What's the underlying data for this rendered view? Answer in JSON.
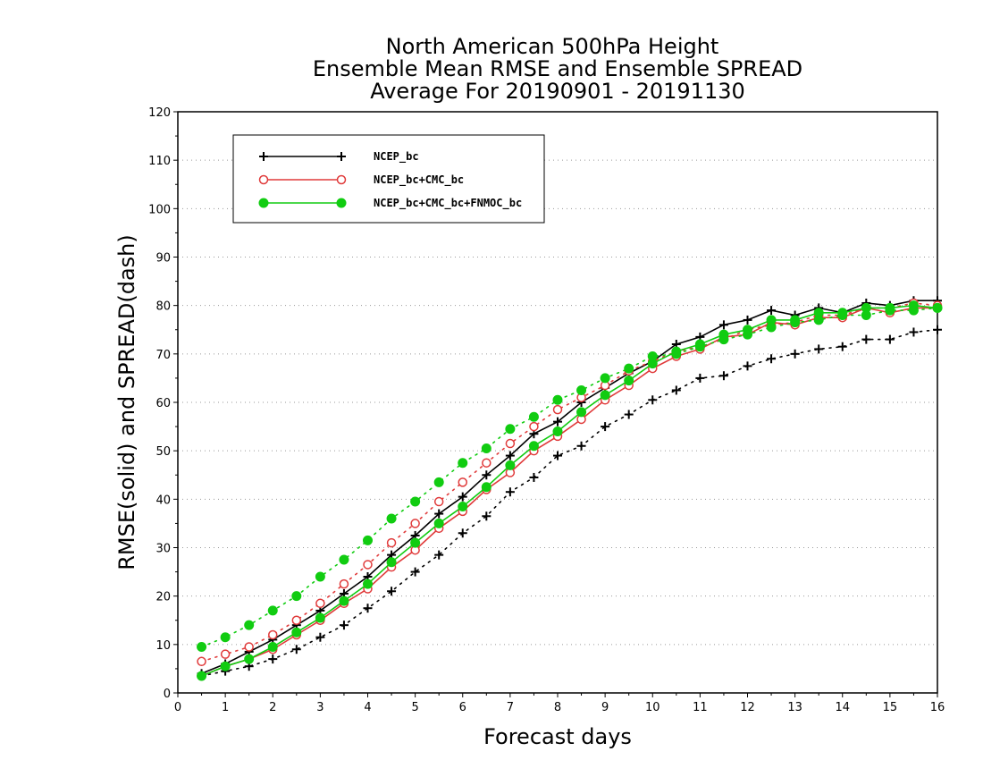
{
  "chart_data": {
    "type": "line",
    "title": [
      "North American 500hPa Height",
      "Ensemble Mean RMSE and Ensemble SPREAD",
      "Average For 20190901 - 20191130"
    ],
    "xlabel": "Forecast days",
    "ylabel": "RMSE(solid) and SPREAD(dash)",
    "xlim": [
      0,
      16
    ],
    "ylim": [
      0,
      120
    ],
    "xticks": [
      "0",
      "1",
      "2",
      "3",
      "4",
      "5",
      "6",
      "7",
      "8",
      "9",
      "10",
      "11",
      "12",
      "13",
      "14",
      "15",
      "16"
    ],
    "yticks": [
      "0",
      "10",
      "20",
      "30",
      "40",
      "50",
      "60",
      "70",
      "80",
      "90",
      "100",
      "110",
      "120"
    ],
    "grid": true,
    "legend_position": "top-left",
    "x": [
      0.5,
      1,
      1.5,
      2,
      2.5,
      3,
      3.5,
      4,
      4.5,
      5,
      5.5,
      6,
      6.5,
      7,
      7.5,
      8,
      8.5,
      9,
      9.5,
      10,
      10.5,
      11,
      11.5,
      12,
      12.5,
      13,
      13.5,
      14,
      14.5,
      15,
      15.5,
      16
    ],
    "series": [
      {
        "name": "NCEP_bc",
        "color": "#000000",
        "marker": "plus",
        "rmse": [
          4,
          6,
          8.5,
          11,
          14,
          17,
          20.5,
          24,
          28.5,
          32.5,
          37,
          40.5,
          45,
          49,
          53.5,
          56,
          60,
          63,
          66,
          68.5,
          72,
          73.5,
          76,
          77,
          79,
          78,
          79.5,
          78.5,
          80.5,
          80,
          81,
          81
        ],
        "spread": [
          3.5,
          4.5,
          5.5,
          7,
          9,
          11.5,
          14,
          17.5,
          21,
          25,
          28.5,
          33,
          36.5,
          41.5,
          44.5,
          49,
          51,
          55,
          57.5,
          60.5,
          62.5,
          65,
          65.5,
          67.5,
          69,
          70,
          71,
          71.5,
          73,
          73,
          74.5,
          75
        ]
      },
      {
        "name": "NCEP_bc+CMC_bc",
        "color": "#e03a3a",
        "marker": "circle-open",
        "rmse": [
          3.5,
          5.5,
          7,
          9,
          12,
          15,
          18.5,
          21.5,
          26,
          29.5,
          34,
          37.5,
          42,
          45.5,
          50,
          53,
          56.5,
          60.5,
          63.5,
          67,
          69.5,
          71,
          73.5,
          74,
          76.5,
          76,
          77.5,
          77.5,
          79.5,
          78.5,
          79.5,
          79.5
        ],
        "spread": [
          6.5,
          8,
          9.5,
          12,
          15,
          18.5,
          22.5,
          26.5,
          31,
          35,
          39.5,
          43.5,
          47.5,
          51.5,
          55,
          58.5,
          61,
          63.5,
          66.5,
          68.5,
          70.5,
          71.5,
          73,
          75,
          76,
          76.5,
          78,
          78,
          79.5,
          79.5,
          80.5,
          80
        ]
      },
      {
        "name": "NCEP_bc+CMC_bc+FNMOC_bc",
        "color": "#11cc11",
        "marker": "circle-filled",
        "rmse": [
          3.5,
          5.5,
          7,
          9.5,
          12.5,
          15.5,
          19,
          22.5,
          27,
          31,
          35,
          38.5,
          42.5,
          47,
          51,
          54,
          58,
          61.5,
          64.5,
          68,
          70.5,
          72,
          74,
          75,
          77,
          77,
          78.5,
          78.5,
          79.5,
          79.5,
          80,
          79.5
        ],
        "spread": [
          9.5,
          11.5,
          14,
          17,
          20,
          24,
          27.5,
          31.5,
          36,
          39.5,
          43.5,
          47.5,
          50.5,
          54.5,
          57,
          60.5,
          62.5,
          65,
          67,
          69.5,
          70,
          71.5,
          73,
          74,
          75.5,
          76.5,
          77,
          78,
          78,
          79,
          79,
          79.5
        ]
      }
    ]
  }
}
